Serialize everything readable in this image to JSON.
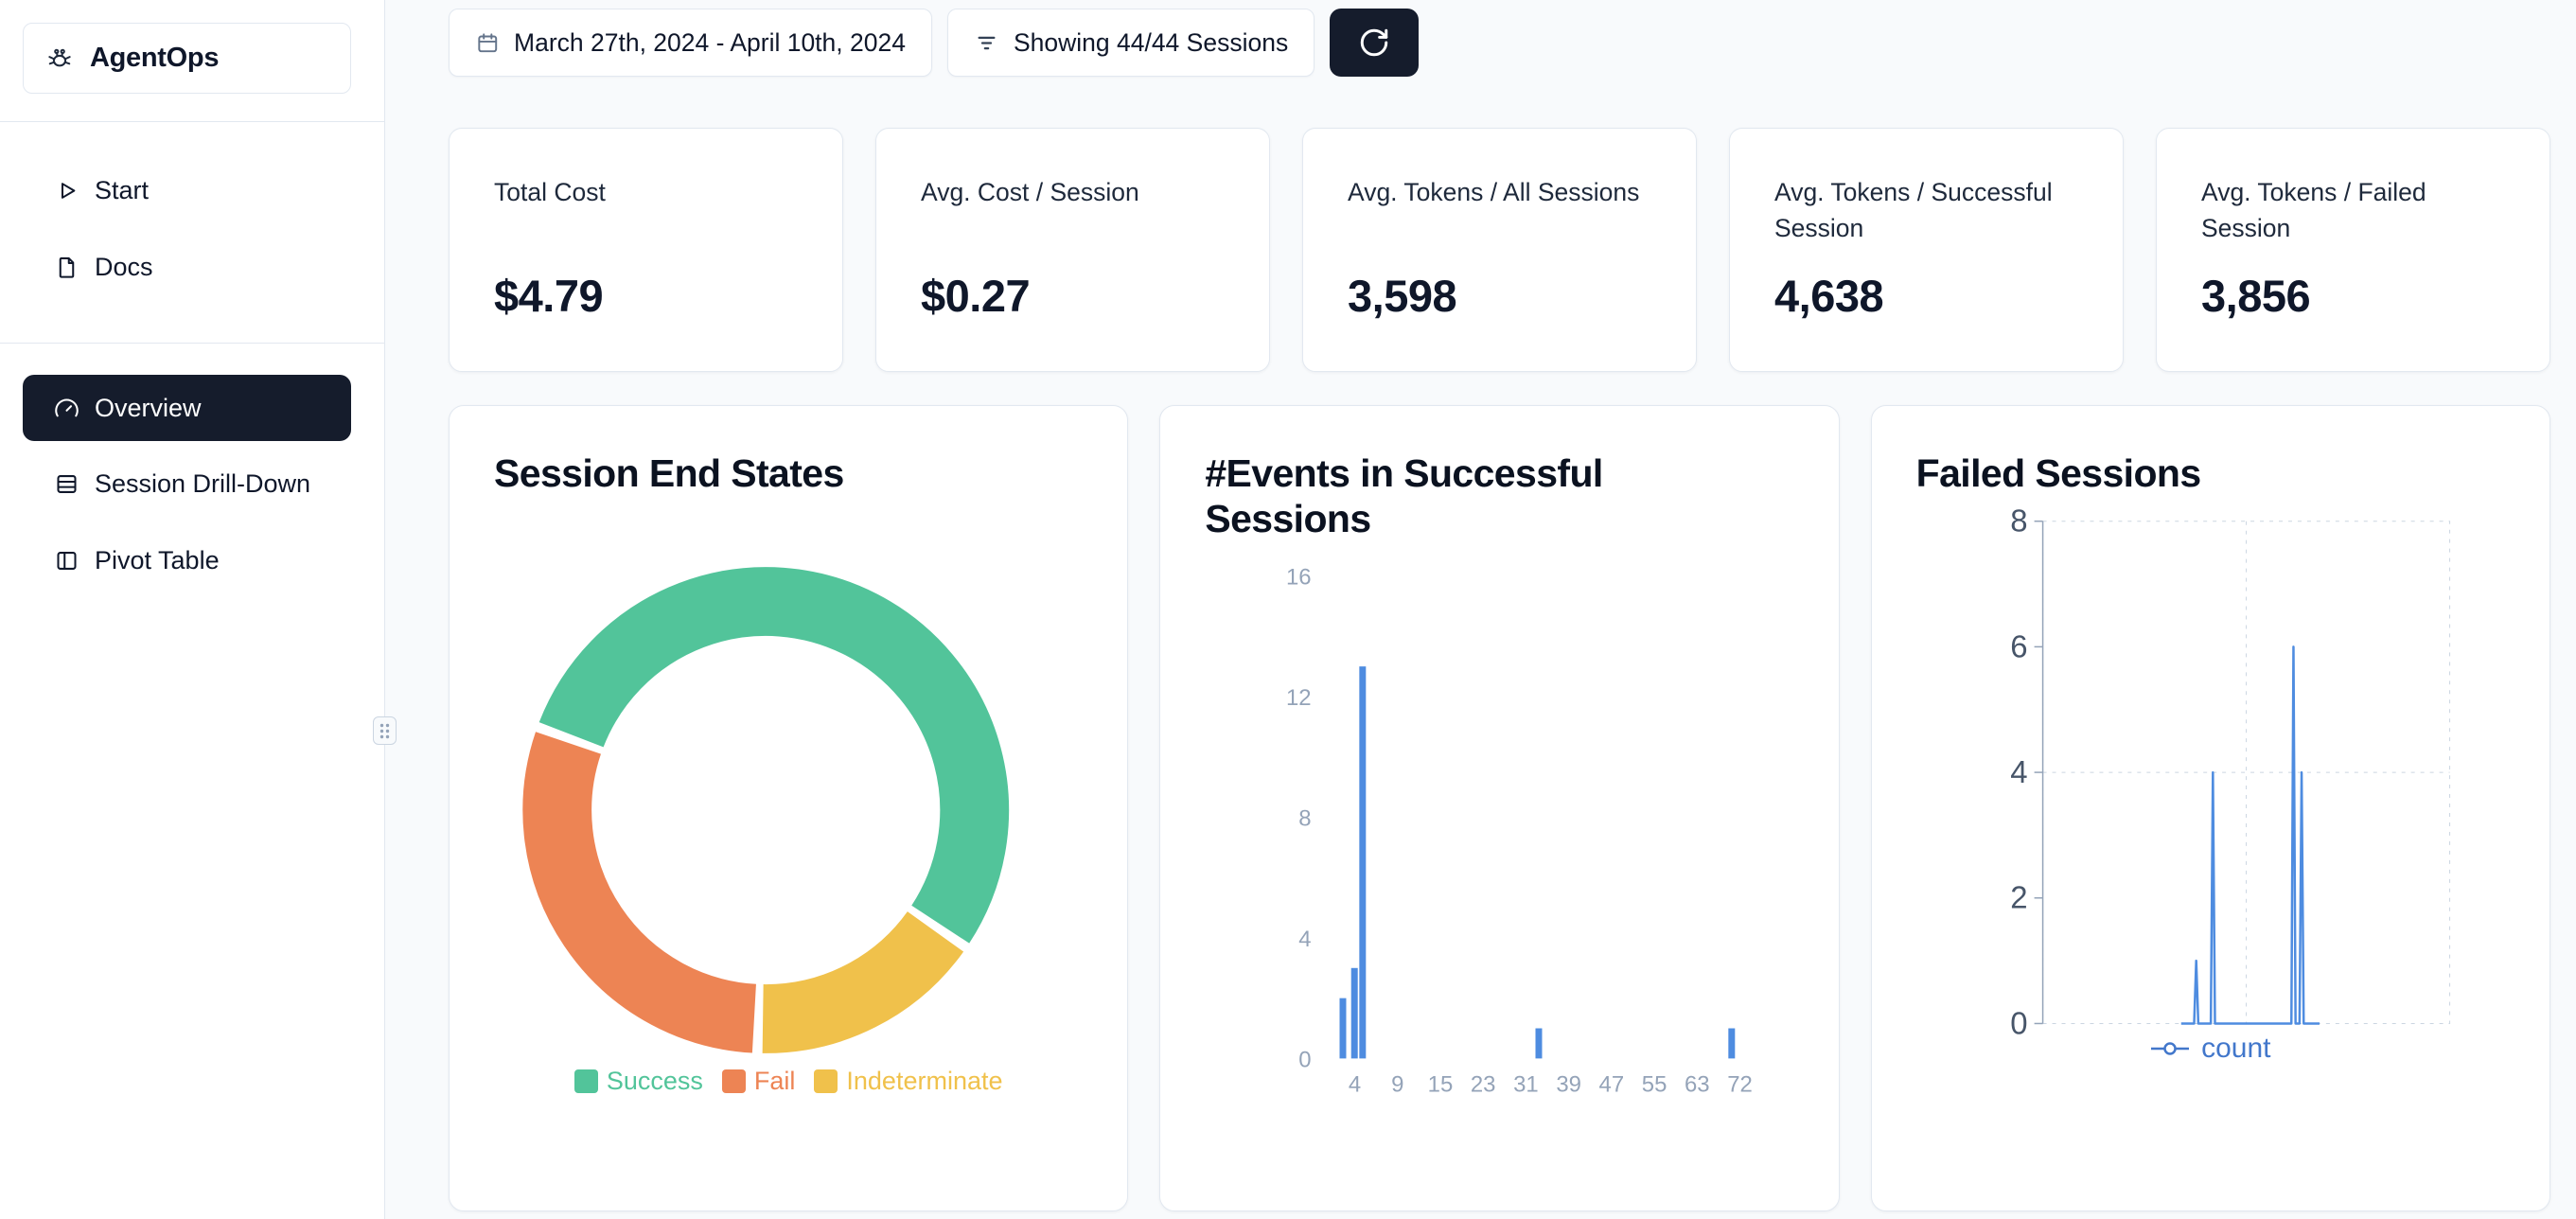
{
  "app": {
    "name": "AgentOps"
  },
  "theme": {
    "accent_dark": "#151C2C",
    "background": "#F8FAFC",
    "card_border": "#E2E8F0"
  },
  "sidebar": {
    "nav_top": [
      {
        "label": "Start",
        "icon": "play-icon"
      },
      {
        "label": "Docs",
        "icon": "docs-icon"
      }
    ],
    "nav_main": [
      {
        "label": "Overview",
        "icon": "gauge-icon",
        "active": true
      },
      {
        "label": "Session Drill-Down",
        "icon": "rows-icon",
        "active": false
      },
      {
        "label": "Pivot Table",
        "icon": "table-icon",
        "active": false
      }
    ]
  },
  "toolbar": {
    "date_range_label": "March 27th, 2024 - April 10th, 2024",
    "sessions_label": "Showing 44/44 Sessions",
    "refresh_icon": "refresh-icon"
  },
  "stats": [
    {
      "label": "Total Cost",
      "value": "$4.79"
    },
    {
      "label": "Avg. Cost / Session",
      "value": "$0.27"
    },
    {
      "label": "Avg. Tokens / All Sessions",
      "value": "3,598"
    },
    {
      "label": "Avg. Tokens / Successful Session",
      "value": "4,638"
    },
    {
      "label": "Avg. Tokens / Failed Session",
      "value": "3,856"
    }
  ],
  "chart_data": [
    {
      "type": "pie",
      "variant": "donut",
      "title": "Session End States",
      "slices": [
        {
          "label": "Success",
          "pct": 54,
          "color": "#52C49A"
        },
        {
          "label": "Fail",
          "pct": 30,
          "color": "#ED8454"
        },
        {
          "label": "Indeterminate",
          "pct": 16,
          "color": "#F0C14B"
        }
      ],
      "draw_order": [
        0,
        2,
        1
      ],
      "start_angle_deg": 290,
      "gap_deg": 2.4,
      "legend_position": "bottom"
    },
    {
      "type": "bar",
      "title": "#Events in Successful Sessions",
      "x_tick_labels": [
        4,
        9,
        15,
        23,
        31,
        39,
        47,
        55,
        63,
        72
      ],
      "y_ticks": [
        0,
        4,
        8,
        12,
        16
      ],
      "ylim": [
        0,
        16
      ],
      "bars": [
        {
          "x_frac": 0.023,
          "count": 2
        },
        {
          "x_frac": 0.05,
          "count": 3
        },
        {
          "x_frac": 0.069,
          "count": 13
        },
        {
          "x_frac": 0.48,
          "count": 1
        },
        {
          "x_frac": 0.93,
          "count": 1
        }
      ],
      "bar_color": "#4E8CE0",
      "axis_color": "#94A3B8",
      "grid": false
    },
    {
      "type": "line",
      "title": "Failed Sessions",
      "series_name": "count",
      "y_ticks": [
        0,
        2,
        4,
        6,
        8
      ],
      "ylim": [
        0,
        8
      ],
      "spikes": [
        {
          "x_frac": 0.377,
          "count": 1
        },
        {
          "x_frac": 0.418,
          "count": 4
        },
        {
          "x_frac": 0.616,
          "count": 6
        },
        {
          "x_frac": 0.636,
          "count": 4
        }
      ],
      "baseline_span": [
        0.34,
        0.68
      ],
      "line_color": "#4E8CE0",
      "legend_color": "#4277CB",
      "axis_text_color": "#475569",
      "grid_color": "#CBD5E1",
      "grid": "dashed",
      "legend_position": "bottom"
    }
  ]
}
